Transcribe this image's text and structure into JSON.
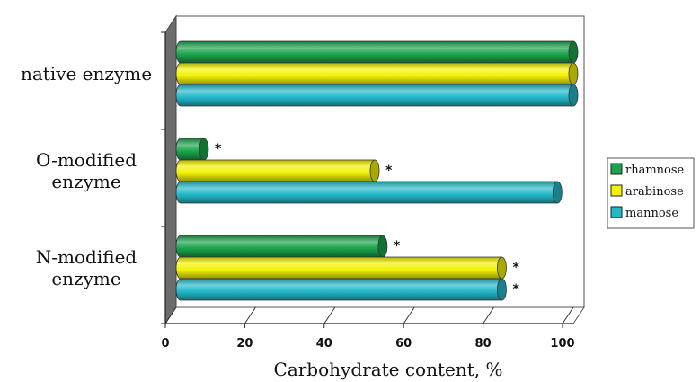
{
  "chart_data": {
    "type": "bar",
    "orientation": "horizontal",
    "categories": [
      "native enzyme",
      "O-modified enzyme",
      "N-modified enzyme"
    ],
    "category_lines": [
      [
        "native enzyme"
      ],
      [
        "O-modified",
        "enzyme"
      ],
      [
        "N-modified",
        "enzyme"
      ]
    ],
    "series": [
      {
        "name": "rhamnose",
        "color": "#1aa34a",
        "values": [
          100,
          7,
          52
        ],
        "marks": [
          "",
          "*",
          "*"
        ]
      },
      {
        "name": "arabinose",
        "color": "#f2f200",
        "values": [
          100,
          50,
          82
        ],
        "marks": [
          "",
          "*",
          "*"
        ]
      },
      {
        "name": "mannose",
        "color": "#22b8c8",
        "values": [
          100,
          96,
          82
        ],
        "marks": [
          "",
          "",
          "*"
        ]
      }
    ],
    "xlabel": "Carbohydrate content, %",
    "xticks": [
      0,
      20,
      40,
      60,
      80,
      100
    ],
    "xlim": [
      0,
      100
    ],
    "grid": false,
    "legend_position": "right",
    "style": "3d-cylinder"
  }
}
